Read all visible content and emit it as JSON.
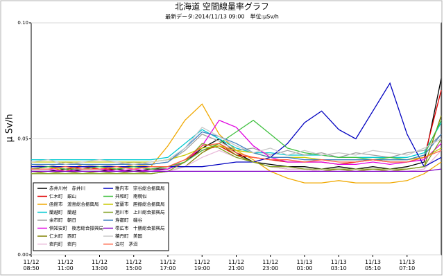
{
  "chart_data": {
    "type": "line",
    "title": "北海道 空間線量率グラフ",
    "subtitle": "最新データ:2014/11/13 09:00　単位:μSv/h",
    "y_label": "μ Sv/h",
    "categories": [
      "11/12 08:50",
      null,
      "11/12 11:00",
      null,
      "11/12 13:00",
      null,
      "11/12 15:00",
      null,
      "11/12 17:00",
      null,
      "11/12 19:00",
      null,
      "11/12 21:00",
      null,
      "11/12 23:00",
      null,
      "11/13 01:00",
      null,
      "11/13 03:10",
      null,
      "11/13 05:10",
      null,
      "11/13 07:10",
      null,
      null
    ],
    "ylim": [
      0,
      0.1
    ],
    "yticks": [
      {
        "value": 0,
        "label": "0.00"
      },
      {
        "value": 0.05,
        "label": "0.05"
      },
      {
        "value": 0.1,
        "label": "0.10"
      }
    ],
    "grid": true,
    "legend": "lower left",
    "series": [
      {
        "name": "赤井川村　赤井川",
        "color": "#000000",
        "values": [
          0.036,
          0.036,
          0.037,
          0.036,
          0.036,
          0.037,
          0.036,
          0.037,
          0.037,
          0.04,
          0.046,
          0.05,
          0.044,
          0.04,
          0.039,
          0.038,
          0.038,
          0.037,
          0.038,
          0.037,
          0.038,
          0.037,
          0.038,
          0.04,
          0.076
        ]
      },
      {
        "name": "仁木町　銀山",
        "color": "#e00000",
        "values": [
          0.037,
          0.038,
          0.037,
          0.038,
          0.037,
          0.037,
          0.038,
          0.037,
          0.038,
          0.041,
          0.045,
          0.047,
          0.043,
          0.042,
          0.041,
          0.04,
          0.04,
          0.04,
          0.039,
          0.04,
          0.041,
          0.04,
          0.04,
          0.042,
          0.071
        ]
      },
      {
        "name": "函館市　渡島総合振興局",
        "color": "#f0a800",
        "values": [
          0.038,
          0.038,
          0.036,
          0.039,
          0.038,
          0.037,
          0.039,
          0.038,
          0.047,
          0.058,
          0.065,
          0.052,
          0.045,
          0.041,
          0.036,
          0.033,
          0.031,
          0.031,
          0.032,
          0.031,
          0.031,
          0.031,
          0.032,
          0.035,
          0.04
        ]
      },
      {
        "name": "蘭越町　蘭越",
        "color": "#00c8d0",
        "values": [
          0.041,
          0.041,
          0.041,
          0.041,
          0.041,
          0.041,
          0.041,
          0.041,
          0.042,
          0.048,
          0.054,
          0.05,
          0.046,
          0.044,
          0.044,
          0.043,
          0.043,
          0.043,
          0.042,
          0.042,
          0.042,
          0.042,
          0.042,
          0.044,
          0.057
        ]
      },
      {
        "name": "余市町　朝日",
        "color": "#a0a0a0",
        "values": [
          0.039,
          0.038,
          0.04,
          0.039,
          0.038,
          0.039,
          0.04,
          0.039,
          0.04,
          0.045,
          0.052,
          0.049,
          0.045,
          0.046,
          0.043,
          0.045,
          0.043,
          0.044,
          0.042,
          0.044,
          0.043,
          0.042,
          0.044,
          0.045,
          0.052
        ]
      },
      {
        "name": "倶知安町　後志総合振興局",
        "color": "#e000e0",
        "values": [
          0.037,
          0.037,
          0.036,
          0.037,
          0.037,
          0.036,
          0.037,
          0.036,
          0.037,
          0.04,
          0.047,
          0.058,
          0.055,
          0.047,
          0.042,
          0.04,
          0.04,
          0.04,
          0.039,
          0.039,
          0.04,
          0.039,
          0.04,
          0.041,
          0.048
        ]
      },
      {
        "name": "仁木町　西町",
        "color": "#808000",
        "values": [
          0.036,
          0.035,
          0.036,
          0.035,
          0.036,
          0.035,
          0.036,
          0.035,
          0.036,
          0.038,
          0.044,
          0.048,
          0.043,
          0.04,
          0.038,
          0.037,
          0.037,
          0.036,
          0.037,
          0.036,
          0.037,
          0.036,
          0.037,
          0.038,
          0.06
        ]
      },
      {
        "name": "岩内町　岩内",
        "color": "#e8b8d8",
        "values": [
          0.035,
          0.035,
          0.035,
          0.035,
          0.035,
          0.035,
          0.035,
          0.035,
          0.036,
          0.038,
          0.042,
          0.045,
          0.042,
          0.04,
          0.038,
          0.037,
          0.037,
          0.036,
          0.036,
          0.036,
          0.036,
          0.036,
          0.036,
          0.037,
          0.045
        ]
      },
      {
        "name": "稚内市　宗谷総合振興局",
        "color": "#0000c0",
        "values": [
          0.038,
          0.038,
          0.038,
          0.038,
          0.038,
          0.038,
          0.038,
          0.038,
          0.038,
          0.038,
          0.038,
          0.039,
          0.04,
          0.04,
          0.042,
          0.048,
          0.057,
          0.062,
          0.054,
          0.05,
          0.062,
          0.074,
          0.052,
          0.038,
          0.042
        ]
      },
      {
        "name": "共和町　南幌似",
        "color": "#40c040",
        "values": [
          0.037,
          0.038,
          0.037,
          0.037,
          0.038,
          0.037,
          0.038,
          0.037,
          0.038,
          0.04,
          0.045,
          0.048,
          0.053,
          0.058,
          0.052,
          0.046,
          0.044,
          0.043,
          0.042,
          0.042,
          0.041,
          0.042,
          0.041,
          0.043,
          0.058
        ]
      },
      {
        "name": "室蘭市　胆振総合振興局",
        "color": "#c8c800",
        "values": [
          0.04,
          0.04,
          0.04,
          0.04,
          0.04,
          0.04,
          0.04,
          0.04,
          0.041,
          0.043,
          0.046,
          0.047,
          0.045,
          0.044,
          0.042,
          0.042,
          0.042,
          0.041,
          0.041,
          0.041,
          0.041,
          0.041,
          0.041,
          0.042,
          0.046
        ]
      },
      {
        "name": "旭川市　上川総合振興局",
        "color": "#80a020",
        "values": [
          0.035,
          0.035,
          0.035,
          0.035,
          0.035,
          0.035,
          0.035,
          0.035,
          0.036,
          0.04,
          0.048,
          0.046,
          0.042,
          0.04,
          0.038,
          0.038,
          0.037,
          0.037,
          0.037,
          0.037,
          0.037,
          0.037,
          0.037,
          0.038,
          0.05
        ]
      },
      {
        "name": "寿都町　磯谷",
        "color": "#4080c0",
        "values": [
          0.039,
          0.039,
          0.039,
          0.039,
          0.039,
          0.039,
          0.039,
          0.039,
          0.04,
          0.046,
          0.053,
          0.051,
          0.048,
          0.044,
          0.042,
          0.042,
          0.041,
          0.041,
          0.041,
          0.041,
          0.041,
          0.041,
          0.041,
          0.043,
          0.052
        ]
      },
      {
        "name": "帯広市　十勝総合振興局",
        "color": "#8000c8",
        "values": [
          0.036,
          0.036,
          0.036,
          0.036,
          0.036,
          0.036,
          0.036,
          0.036,
          0.036,
          0.036,
          0.036,
          0.036,
          0.036,
          0.036,
          0.036,
          0.036,
          0.036,
          0.036,
          0.036,
          0.036,
          0.036,
          0.036,
          0.036,
          0.036,
          0.037
        ]
      },
      {
        "name": "積丹町　美国",
        "color": "#c8c8c8",
        "values": [
          0.04,
          0.041,
          0.039,
          0.04,
          0.041,
          0.04,
          0.039,
          0.04,
          0.041,
          0.046,
          0.055,
          0.051,
          0.047,
          0.044,
          0.046,
          0.043,
          0.045,
          0.043,
          0.044,
          0.043,
          0.045,
          0.044,
          0.043,
          0.046,
          0.05
        ]
      },
      {
        "name": "泊村　茅沼",
        "color": "#ff6040",
        "values": [
          0.037,
          0.037,
          0.038,
          0.037,
          0.037,
          0.038,
          0.037,
          0.038,
          0.038,
          0.041,
          0.047,
          0.048,
          0.044,
          0.042,
          0.041,
          0.041,
          0.04,
          0.041,
          0.04,
          0.04,
          0.041,
          0.04,
          0.04,
          0.042,
          0.045
        ]
      }
    ]
  }
}
